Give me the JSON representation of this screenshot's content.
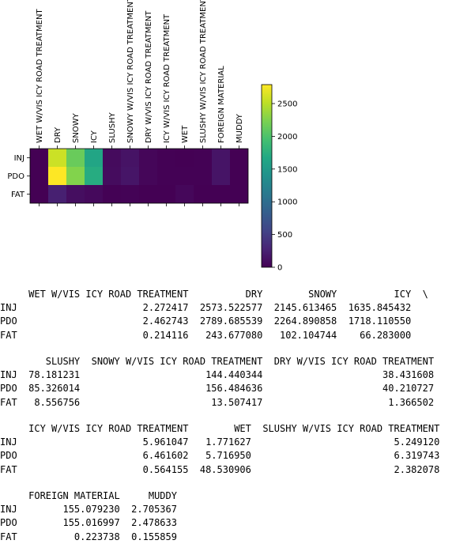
{
  "chart_data": {
    "type": "heatmap",
    "columns": [
      "WET W/VIS ICY ROAD TREATMENT",
      "DRY",
      "SNOWY",
      "ICY",
      "SLUSHY",
      "SNOWY W/VIS ICY ROAD TREATMENT",
      "DRY W/VIS ICY ROAD TREATMENT",
      "ICY W/VIS ICY ROAD TREATMENT",
      "WET",
      "SLUSHY W/VIS ICY ROAD TREATMENT",
      "FOREIGN MATERIAL",
      "MUDDY"
    ],
    "rows": [
      "INJ",
      "PDO",
      "FAT"
    ],
    "values": [
      [
        2.272417,
        2573.522577,
        2145.613465,
        1635.845432,
        78.181231,
        144.440344,
        38.431608,
        5.961047,
        1.771627,
        5.24912,
        155.07923,
        2.705367
      ],
      [
        2.462743,
        2789.685539,
        2264.890858,
        1718.11055,
        85.326014,
        156.484636,
        40.210727,
        6.461602,
        5.71695,
        6.319743,
        155.016997,
        2.478633
      ],
      [
        0.214116,
        243.67708,
        102.104744,
        66.283,
        8.556756,
        13.507417,
        1.366502,
        0.564155,
        48.530906,
        2.382078,
        0.223738,
        0.155859
      ]
    ],
    "colorbar": {
      "min": 0,
      "max": 2789.685539,
      "ticks": [
        0,
        500,
        1000,
        1500,
        2000,
        2500
      ],
      "colormap": "viridis"
    }
  },
  "table": {
    "continuation_mark": "\\",
    "blocks": [
      {
        "columns": [
          "WET W/VIS ICY ROAD TREATMENT",
          "DRY",
          "SNOWY",
          "ICY"
        ],
        "continued": true,
        "rows": [
          {
            "label": "INJ",
            "cells": [
              "2.272417",
              "2573.522577",
              "2145.613465",
              "1635.845432"
            ]
          },
          {
            "label": "PDO",
            "cells": [
              "2.462743",
              "2789.685539",
              "2264.890858",
              "1718.110550"
            ]
          },
          {
            "label": "FAT",
            "cells": [
              "0.214116",
              "243.677080",
              "102.104744",
              "66.283000"
            ]
          }
        ]
      },
      {
        "columns": [
          "SLUSHY",
          "SNOWY W/VIS ICY ROAD TREATMENT",
          "DRY W/VIS ICY ROAD TREATMENT"
        ],
        "continued": false,
        "rows": [
          {
            "label": "INJ",
            "cells": [
              "78.181231",
              "144.440344",
              "38.431608"
            ]
          },
          {
            "label": "PDO",
            "cells": [
              "85.326014",
              "156.484636",
              "40.210727"
            ]
          },
          {
            "label": "FAT",
            "cells": [
              "8.556756",
              "13.507417",
              "1.366502"
            ]
          }
        ]
      },
      {
        "columns": [
          "ICY W/VIS ICY ROAD TREATMENT",
          "WET",
          "SLUSHY W/VIS ICY ROAD TREATMENT"
        ],
        "continued": false,
        "rows": [
          {
            "label": "INJ",
            "cells": [
              "5.961047",
              "1.771627",
              "5.249120"
            ]
          },
          {
            "label": "PDO",
            "cells": [
              "6.461602",
              "5.716950",
              "6.319743"
            ]
          },
          {
            "label": "FAT",
            "cells": [
              "0.564155",
              "48.530906",
              "2.382078"
            ]
          }
        ]
      },
      {
        "columns": [
          "FOREIGN MATERIAL",
          "MUDDY"
        ],
        "continued": false,
        "rows": [
          {
            "label": "INJ",
            "cells": [
              "155.079230",
              "2.705367"
            ]
          },
          {
            "label": "PDO",
            "cells": [
              "155.016997",
              "2.478633"
            ]
          },
          {
            "label": "FAT",
            "cells": [
              "0.223738",
              "0.155859"
            ]
          }
        ]
      }
    ]
  }
}
